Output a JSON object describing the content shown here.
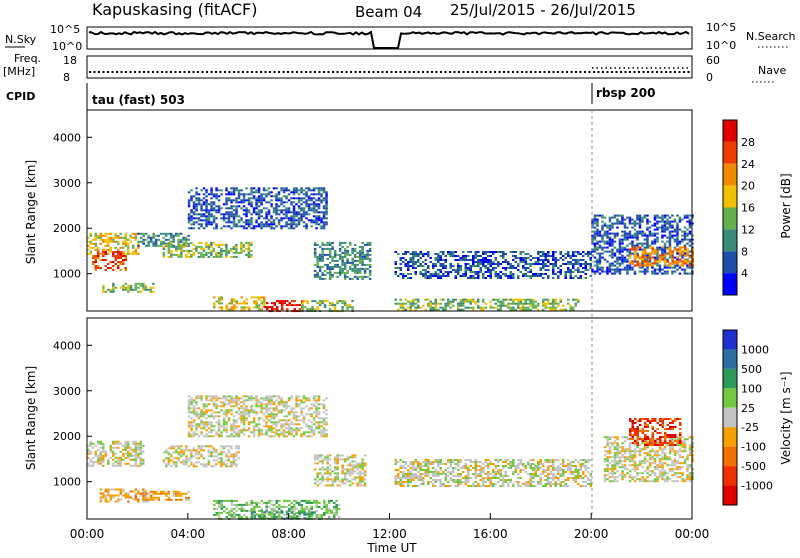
{
  "header": {
    "station": "Kapuskasing (fitACF)",
    "beam": "Beam 04",
    "dates": "25/Jul/2015 - 26/Jul/2015"
  },
  "noise_panel": {
    "left_label": "N.Sky",
    "left_top_tick": "10^5",
    "left_bottom_tick": "10^0",
    "right_top_tick": "10^5",
    "right_bottom_tick": "10^0",
    "right_label": "N.Search"
  },
  "freq_panel": {
    "left_label_1": "Freq.",
    "left_label_2": "[MHz]",
    "left_top_tick": "18",
    "left_bottom_tick": "8",
    "right_top_tick": "60",
    "right_bottom_tick": "0",
    "right_label": "Nave"
  },
  "cpid_panel": {
    "label": "CPID",
    "mode_1": "tau (fast) 503",
    "mode_2": "rbsp 200"
  },
  "power_panel": {
    "ylabel": "Slant Range [km]",
    "colorbar_title": "Power [dB]",
    "colorbar_ticks": [
      "4",
      "8",
      "12",
      "16",
      "20",
      "24",
      "28"
    ],
    "colorbar_colors": [
      "#0000ff",
      "#1e4fa8",
      "#3a8a78",
      "#62b050",
      "#f2c000",
      "#f08a00",
      "#ef3c00",
      "#e00000"
    ]
  },
  "velocity_panel": {
    "ylabel": "Slant Range [km]",
    "colorbar_title": "Velocity [m s⁻¹]",
    "colorbar_ticks": [
      "1000",
      "500",
      "100",
      "25",
      "-25",
      "-100",
      "-500",
      "-1000"
    ],
    "colorbar_colors": [
      "#2030d0",
      "#2d6fa0",
      "#2e9a5a",
      "#72c840",
      "#c4c4c4",
      "#f5a000",
      "#f07000",
      "#f03000",
      "#e00000"
    ]
  },
  "time_axis": {
    "xlabel": "Time UT",
    "ticks": [
      "00:00",
      "04:00",
      "08:00",
      "12:00",
      "16:00",
      "20:00",
      "00:00"
    ]
  },
  "chart_data": [
    {
      "type": "heatmap",
      "title": "Power",
      "ylabel": "Slant Range [km]",
      "xlim_hours": [
        0,
        24
      ],
      "ylim": [
        180,
        4600
      ],
      "yticks": [
        1000,
        2000,
        3000,
        4000
      ],
      "colorbar_label": "Power [dB]",
      "colorbar_ticks": [
        4,
        8,
        12,
        16,
        20,
        24,
        28
      ],
      "regions": [
        {
          "t": [
            0.0,
            2.0
          ],
          "r": [
            1450,
            1900
          ],
          "level": 4
        },
        {
          "t": [
            0.2,
            1.5
          ],
          "r": [
            1100,
            1500
          ],
          "level": 6
        },
        {
          "t": [
            0.6,
            2.6
          ],
          "r": [
            600,
            800
          ],
          "level": 3
        },
        {
          "t": [
            2.0,
            4.0
          ],
          "r": [
            1600,
            1900
          ],
          "level": 2
        },
        {
          "t": [
            3.0,
            6.5
          ],
          "r": [
            1350,
            1700
          ],
          "level": 3
        },
        {
          "t": [
            4.0,
            9.5
          ],
          "r": [
            2000,
            2900
          ],
          "level": 1
        },
        {
          "t": [
            5.0,
            7.0
          ],
          "r": [
            200,
            500
          ],
          "level": 4
        },
        {
          "t": [
            7.0,
            8.5
          ],
          "r": [
            200,
            420
          ],
          "level": 7
        },
        {
          "t": [
            8.5,
            10.5
          ],
          "r": [
            200,
            420
          ],
          "level": 3
        },
        {
          "t": [
            9.0,
            11.2
          ],
          "r": [
            900,
            1700
          ],
          "level": 2
        },
        {
          "t": [
            12.2,
            20.0
          ],
          "r": [
            900,
            1500
          ],
          "level": 1
        },
        {
          "t": [
            12.2,
            19.5
          ],
          "r": [
            200,
            450
          ],
          "level": 3
        },
        {
          "t": [
            20.0,
            24.0
          ],
          "r": [
            1000,
            2300
          ],
          "level": 1
        },
        {
          "t": [
            21.5,
            24.0
          ],
          "r": [
            1200,
            1600
          ],
          "level": 5
        }
      ]
    },
    {
      "type": "heatmap",
      "title": "Velocity",
      "ylabel": "Slant Range [km]",
      "xlim_hours": [
        0,
        24
      ],
      "ylim": [
        180,
        4600
      ],
      "yticks": [
        1000,
        2000,
        3000,
        4000
      ],
      "colorbar_label": "Velocity [m s⁻¹]",
      "colorbar_ticks": [
        1000,
        500,
        100,
        25,
        -25,
        -100,
        -500,
        -1000
      ],
      "regions": [
        {
          "t": [
            0.0,
            2.2
          ],
          "r": [
            1350,
            1900
          ],
          "level": 4
        },
        {
          "t": [
            0.5,
            2.5
          ],
          "r": [
            550,
            850
          ],
          "level": 5
        },
        {
          "t": [
            2.2,
            4.0
          ],
          "r": [
            600,
            800
          ],
          "level": 5
        },
        {
          "t": [
            3.0,
            6.0
          ],
          "r": [
            1350,
            1800
          ],
          "level": 4
        },
        {
          "t": [
            4.0,
            9.5
          ],
          "r": [
            2000,
            2900
          ],
          "level": 4
        },
        {
          "t": [
            5.0,
            10.0
          ],
          "r": [
            200,
            600
          ],
          "level": 3
        },
        {
          "t": [
            6.5,
            9.0
          ],
          "r": [
            200,
            350
          ],
          "level": 2
        },
        {
          "t": [
            9.0,
            11.0
          ],
          "r": [
            900,
            1600
          ],
          "level": 4
        },
        {
          "t": [
            12.2,
            20.0
          ],
          "r": [
            900,
            1500
          ],
          "level": 4
        },
        {
          "t": [
            20.5,
            24.0
          ],
          "r": [
            1000,
            2000
          ],
          "level": 4
        },
        {
          "t": [
            21.5,
            23.5
          ],
          "r": [
            1800,
            2400
          ],
          "level": 7
        }
      ]
    }
  ]
}
